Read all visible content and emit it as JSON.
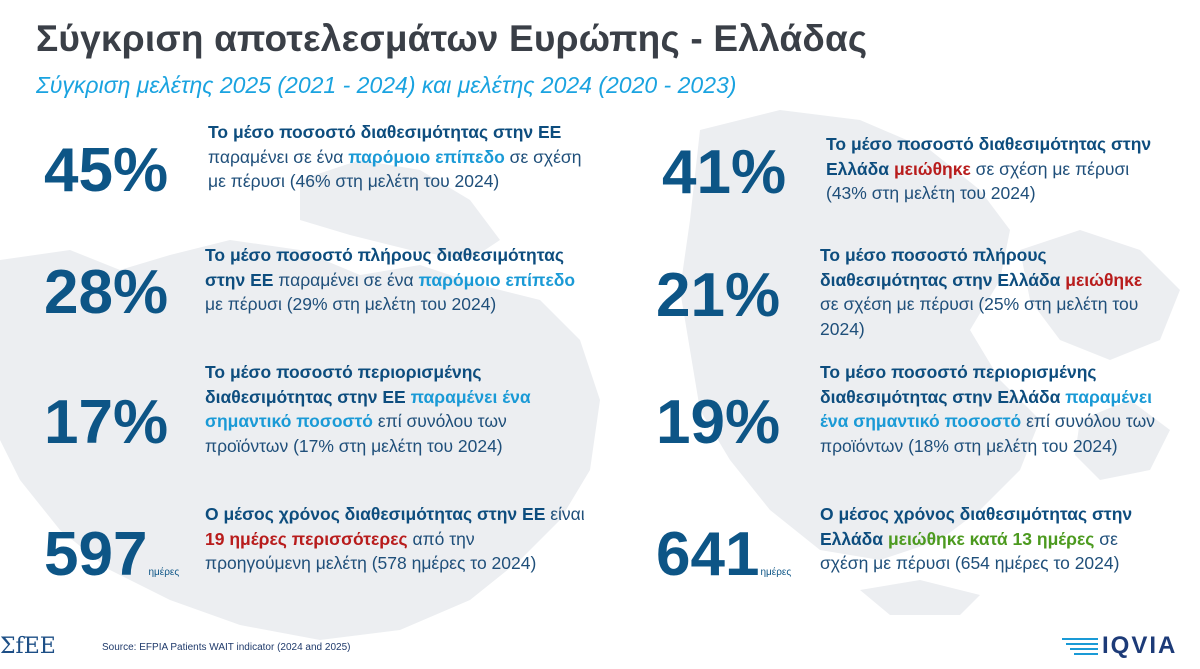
{
  "title": "Σύγκριση αποτελεσμάτων Ευρώπης - Ελλάδας",
  "subtitle": "Σύγκριση μελέτης 2025 (2021 - 2024) και μελέτης 2024 (2020 - 2023)",
  "eu": {
    "availability": {
      "value": "45%",
      "p1": "Το μέσο ποσοστό διαθεσιμότητας στην ΕΕ",
      "p2": " παραμένει σε ένα ",
      "p3": "παρόμοιο επίπεδο",
      "p4": " σε σχέση με πέρυσι (46% στη μελέτη του 2024)"
    },
    "full": {
      "value": "28%",
      "p1": "Το μέσο ποσοστό πλήρους διαθεσιμότητας στην ΕΕ",
      "p2": " παραμένει σε ένα ",
      "p3": "παρόμοιο επίπεδο",
      "p4": " με πέρυσι (29% στη μελέτη του 2024)"
    },
    "limited": {
      "value": "17%",
      "p1": "Το μέσο ποσοστό περιορισμένης διαθεσιμότητας στην ΕΕ",
      "p2": " ",
      "p3": "παραμένει ένα σημαντικό ποσοστό",
      "p4": " επί συνόλου των προϊόντων (17% στη μελέτη του 2024)"
    },
    "time": {
      "value": "597",
      "unit": "ημέρες",
      "p1": "Ο μέσος χρόνος διαθεσιμότητας στην ΕΕ",
      "p2": " είναι ",
      "p3": "19 ημέρες περισσότερες",
      "p4": " από την προηγούμενη μελέτη (578 ημέρες το 2024)"
    }
  },
  "gr": {
    "availability": {
      "value": "41%",
      "p1": "Το μέσο ποσοστό διαθεσιμότητας στην Ελλάδα",
      "p2": " ",
      "p3": "μειώθηκε",
      "p4": " σε σχέση με πέρυσι (43% στη μελέτη του 2024)"
    },
    "full": {
      "value": "21%",
      "p1": "Το μέσο ποσοστό πλήρους διαθεσιμότητας στην Ελλάδα",
      "p2": " ",
      "p3": "μειώθηκε",
      "p4": " σε σχέση με πέρυσι (25% στη μελέτη του 2024)"
    },
    "limited": {
      "value": "19%",
      "p1": "Το μέσο ποσοστό περιορισμένης διαθεσιμότητας στην Ελλάδα",
      "p2": " ",
      "p3": "παραμένει ένα σημαντικό ποσοστό",
      "p4": " επί συνόλου των προϊόντων (18% στη μελέτη του 2024)"
    },
    "time": {
      "value": "641",
      "unit": "ημέρες",
      "p1": "Ο μέσος χρόνος διαθεσιμότητας στην Ελλάδα",
      "p2": " ",
      "p3": "μειώθηκε κατά 13 ημέρες",
      "p4": " σε σχέση με πέρυσι (654 ημέρες το 2024)"
    }
  },
  "footer": {
    "logo_left": "ΣfEE",
    "source": "Source: EFPIA Patients WAIT indicator (2024 and 2025)",
    "logo_right": "IQVIA"
  },
  "colors": {
    "stat": "#0d5586",
    "highlight_blue": "#1a9ad6",
    "highlight_red": "#b81c1c",
    "highlight_green": "#4c9a1f",
    "subtitle": "#1aa3e0"
  }
}
